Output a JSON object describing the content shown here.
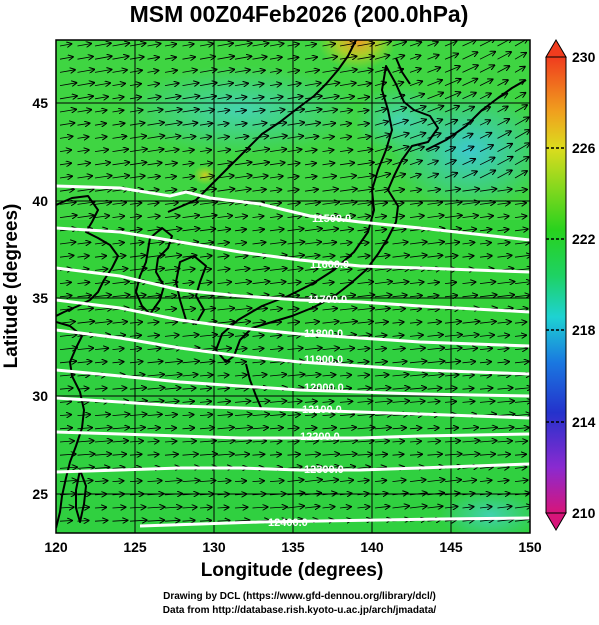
{
  "title": "MSM 00Z04Feb2026 (200.0hPa)",
  "xlabel": "Longitude (degrees)",
  "ylabel": "Latitude  (degrees)",
  "credits": [
    "Drawing by DCL (https://www.gfd-dennou.org/library/dcl/)",
    "Data from http://database.rish.kyoto-u.ac.jp/arch/jmadata/"
  ],
  "map": {
    "xlim": [
      120,
      150
    ],
    "ylim": [
      22.4,
      47.6
    ],
    "x_ticks": [
      120,
      125,
      130,
      135,
      140,
      145,
      150
    ],
    "y_ticks": [
      25,
      30,
      35,
      40,
      45
    ],
    "grid": true,
    "shading_variable": "temperature (K)",
    "vectors": "wind arrows, predominantly westerly"
  },
  "colorbar": {
    "range": [
      210,
      230
    ],
    "tick_labels": [
      "230",
      "226",
      "222",
      "218",
      "214",
      "210"
    ],
    "colors": [
      "#d7157a",
      "#a020c8",
      "#2a2acc",
      "#1a7ae0",
      "#1ed2d2",
      "#1ed23c",
      "#3ad21e",
      "#b4dc1e",
      "#f0b41e",
      "#f0501e"
    ],
    "extend": "both"
  },
  "contours": [
    {
      "label": "11500.0"
    },
    {
      "label": "11600.0"
    },
    {
      "label": "11700.0"
    },
    {
      "label": "11800.0"
    },
    {
      "label": "11900.0"
    },
    {
      "label": "12000.0"
    },
    {
      "label": "12100.0"
    },
    {
      "label": "12200.0"
    },
    {
      "label": "12300.0"
    },
    {
      "label": "12400.0"
    }
  ]
}
